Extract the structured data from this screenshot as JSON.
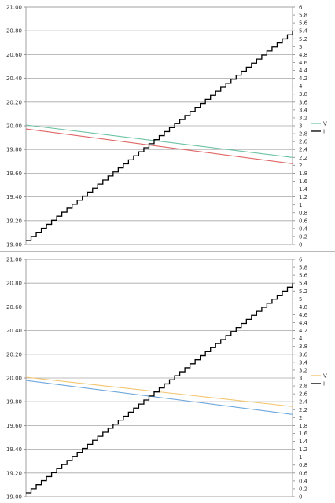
{
  "chart_data": [
    {
      "type": "line",
      "title": "",
      "xlabel": "",
      "ylabel": "",
      "y_left": {
        "lim": [
          19.0,
          21.0
        ],
        "ticks": [
          "19.00",
          "19.20",
          "19.40",
          "19.60",
          "19.80",
          "20.00",
          "20.20",
          "20.40",
          "20.60",
          "20.80",
          "21.00"
        ]
      },
      "y_right": {
        "lim": [
          0,
          6
        ],
        "ticks": [
          "0",
          "0.2",
          "0.4",
          "0.6",
          "0.8",
          "1",
          "1.2",
          "1.4",
          "1.6",
          "1.8",
          "2",
          "2.2",
          "2.4",
          "2.6",
          "2.8",
          "3",
          "3.2",
          "3.4",
          "3.6",
          "3.8",
          "4",
          "4.2",
          "4.4",
          "4.6",
          "4.8",
          "5",
          "5.2",
          "5.4",
          "5.6",
          "5.8",
          "6"
        ]
      },
      "x": {
        "lim": [
          0,
          1
        ]
      },
      "grid": true,
      "legend_position": "right",
      "series": [
        {
          "key": "v",
          "name": "V",
          "axis": "right",
          "color": "#6cc3a3",
          "x": [
            0,
            1
          ],
          "y": [
            3.02,
            2.2
          ]
        },
        {
          "key": "red",
          "name": "",
          "axis": "right",
          "color": "#e06666",
          "x": [
            0,
            1
          ],
          "y": [
            2.92,
            2.04
          ]
        },
        {
          "key": "i",
          "name": "I",
          "axis": "right",
          "color": "#000000",
          "step": true,
          "x": [
            0,
            1
          ],
          "y": [
            0.1,
            5.4
          ],
          "steps": 52
        }
      ]
    },
    {
      "type": "line",
      "title": "",
      "xlabel": "",
      "ylabel": "",
      "y_left": {
        "lim": [
          19.0,
          21.0
        ],
        "ticks": [
          "19.00",
          "19.20",
          "19.40",
          "19.60",
          "19.80",
          "20.00",
          "20.20",
          "20.40",
          "20.60",
          "20.80",
          "21.00"
        ]
      },
      "y_right": {
        "lim": [
          0,
          6
        ],
        "ticks": [
          "0",
          "0.2",
          "0.4",
          "0.6",
          "0.8",
          "1",
          "1.2",
          "1.4",
          "1.6",
          "1.8",
          "2",
          "2.2",
          "2.4",
          "2.6",
          "2.8",
          "3",
          "3.2",
          "3.4",
          "3.6",
          "3.8",
          "4",
          "4.2",
          "4.4",
          "4.6",
          "4.8",
          "5",
          "5.2",
          "5.4",
          "5.6",
          "5.8",
          "6"
        ]
      },
      "x": {
        "lim": [
          0,
          1
        ]
      },
      "grid": true,
      "legend_position": "right",
      "series": [
        {
          "key": "v",
          "name": "V",
          "axis": "right",
          "color": "#f2c46d",
          "x": [
            0,
            1
          ],
          "y": [
            3.02,
            2.28
          ]
        },
        {
          "key": "blue",
          "name": "",
          "axis": "right",
          "color": "#6fa8dc",
          "x": [
            0,
            1
          ],
          "y": [
            2.94,
            2.08
          ]
        },
        {
          "key": "i",
          "name": "I",
          "axis": "right",
          "color": "#000000",
          "step": true,
          "x": [
            0,
            1
          ],
          "y": [
            0.1,
            5.4
          ],
          "steps": 52
        }
      ]
    }
  ]
}
